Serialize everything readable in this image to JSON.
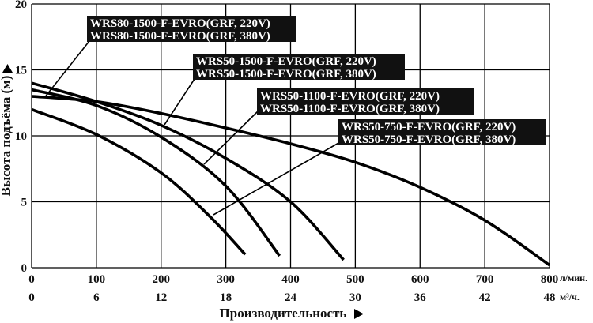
{
  "chart_data": {
    "type": "line",
    "ylabel": "Высота подъёма (м)",
    "xlabel": "Производительность",
    "y_ticks": [
      "0",
      "5",
      "10",
      "15",
      "20"
    ],
    "x_ticks_primary": [
      "0",
      "100",
      "200",
      "300",
      "400",
      "500",
      "600",
      "700",
      "800"
    ],
    "x_unit_primary": "л/мин.",
    "x_ticks_secondary": [
      "0",
      "6",
      "12",
      "18",
      "24",
      "30",
      "36",
      "42",
      "48"
    ],
    "x_unit_secondary": "м³/ч.",
    "ylim": [
      0,
      20
    ],
    "xlim": [
      0,
      800
    ],
    "grid": true,
    "series": [
      {
        "name": "WRS80-1500-F-EVRO(GRF, 220V) / WRS80-1500-F-EVRO(GRF, 380V)",
        "x": [
          0,
          100,
          200,
          300,
          400,
          500,
          600,
          700,
          800
        ],
        "y": [
          13,
          12.6,
          11.7,
          10.6,
          9.4,
          8.0,
          6.1,
          3.6,
          0.2
        ]
      },
      {
        "name": "WRS50-1500-F-EVRO(GRF, 220V) / WRS50-1500-F-EVRO(GRF, 380V)",
        "x": [
          0,
          100,
          200,
          300,
          400,
          482
        ],
        "y": [
          14.0,
          12.6,
          10.8,
          8.3,
          5.0,
          0.6
        ]
      },
      {
        "name": "WRS50-1100-F-EVRO(GRF, 220V) / WRS50-1100-F-EVRO(GRF, 380V)",
        "x": [
          0,
          100,
          200,
          300,
          383
        ],
        "y": [
          13.5,
          12.3,
          9.9,
          6.2,
          0.9
        ]
      },
      {
        "name": "WRS50-750-F-EVRO(GRF, 220V) / WRS50-750-F-EVRO(GRF, 380V)",
        "x": [
          0,
          100,
          200,
          275,
          330
        ],
        "y": [
          12.0,
          10.1,
          7.2,
          3.9,
          1.0
        ]
      }
    ],
    "annotations": [
      {
        "lines": [
          "WRS80-1500-F-EVRO(GRF, 220V)",
          "WRS80-1500-F-EVRO(GRF, 380V)"
        ]
      },
      {
        "lines": [
          "WRS50-1500-F-EVRO(GRF, 220V)",
          "WRS50-1500-F-EVRO(GRF, 380V)"
        ]
      },
      {
        "lines": [
          "WRS50-1100-F-EVRO(GRF, 220V)",
          "WRS50-1100-F-EVRO(GRF, 380V)"
        ]
      },
      {
        "lines": [
          "WRS50-750-F-EVRO(GRF, 220V)",
          "WRS50-750-F-EVRO(GRF, 380V)"
        ]
      }
    ]
  }
}
